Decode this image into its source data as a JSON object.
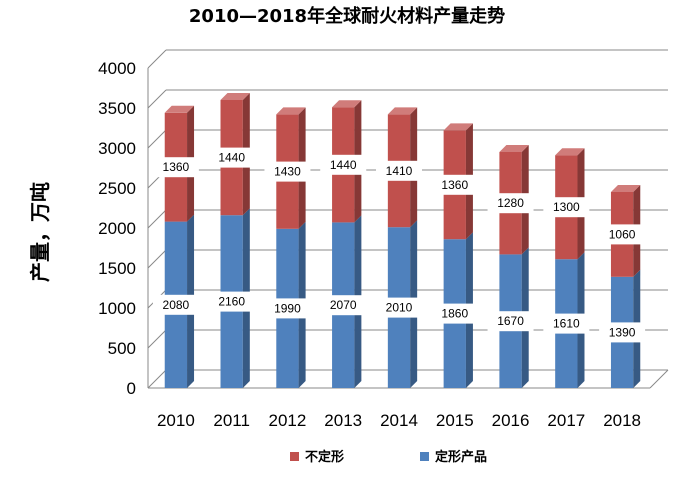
{
  "chart_data": {
    "type": "bar",
    "stacked": true,
    "title": "2010—2018年全球耐火材料产量走势",
    "ylabel": "产量，万吨",
    "xlabel": "",
    "categories": [
      "2010",
      "2011",
      "2012",
      "2013",
      "2014",
      "2015",
      "2016",
      "2017",
      "2018"
    ],
    "series": [
      {
        "name": "定形产品",
        "color": "#4F81BD",
        "values": [
          2080,
          2160,
          1990,
          2070,
          2010,
          1860,
          1670,
          1610,
          1390
        ]
      },
      {
        "name": "不定形",
        "color": "#C0504D",
        "values": [
          1360,
          1440,
          1430,
          1440,
          1410,
          1360,
          1280,
          1300,
          1060
        ]
      }
    ],
    "ylim": [
      0,
      4000
    ],
    "yticks": [
      "0",
      "500",
      "1000",
      "1500",
      "2000",
      "2500",
      "3000",
      "3500",
      "4000"
    ],
    "legend_position": "bottom",
    "legend_order": [
      "不定形",
      "定形产品"
    ],
    "grid": true
  }
}
